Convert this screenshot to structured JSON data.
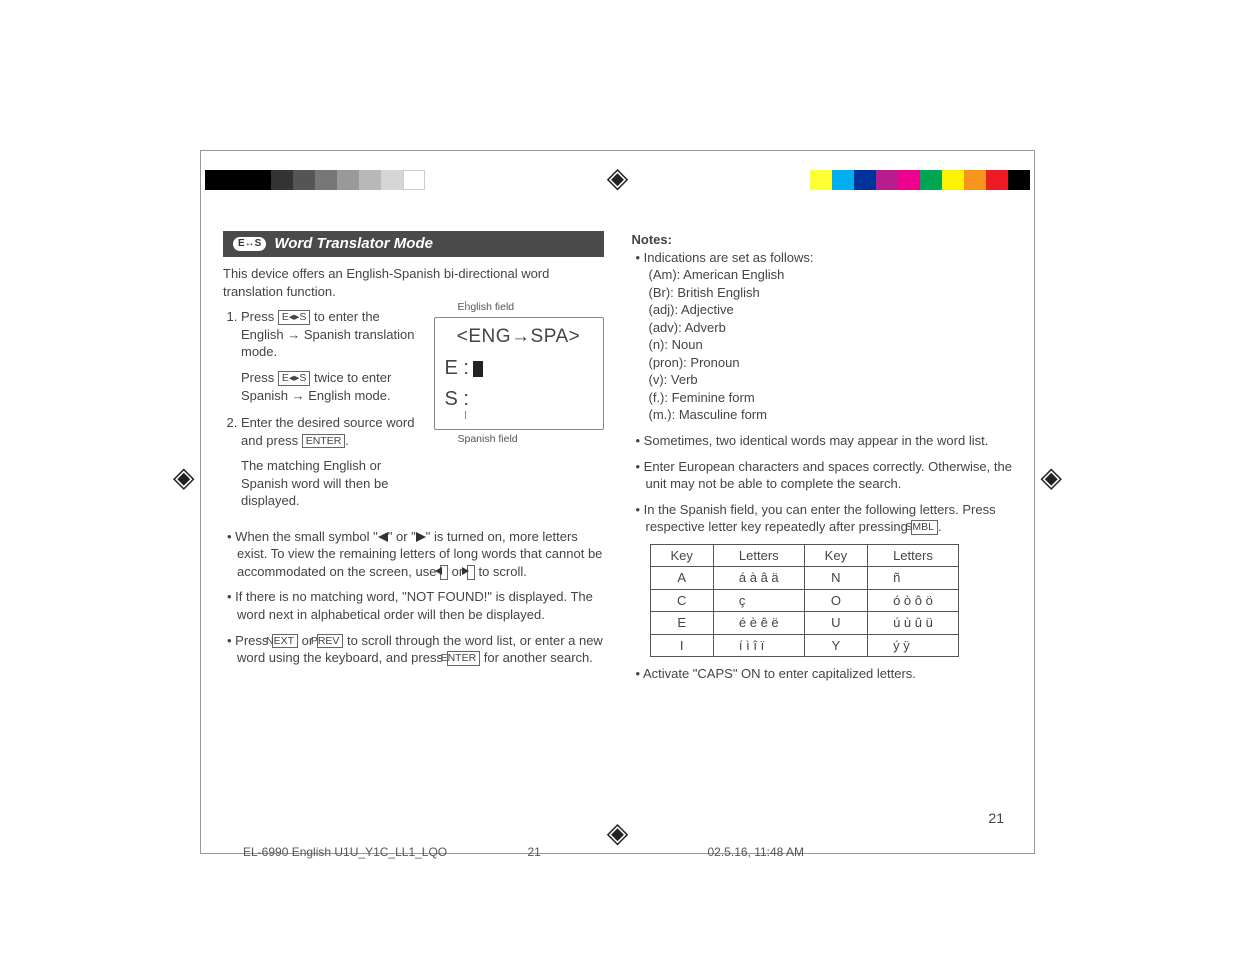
{
  "colorbars": {
    "left": [
      "#000000",
      "#000000",
      "#000000",
      "#333333",
      "#555555",
      "#777777",
      "#999999",
      "#b8b8b8",
      "#d6d6d6",
      "#ffffff"
    ],
    "right": [
      "#ffff33",
      "#00aeef",
      "#003399",
      "#b81c8c",
      "#ec008c",
      "#00a551",
      "#fff200",
      "#f7941d",
      "#ed1c24",
      "#000000"
    ]
  },
  "banner": {
    "badge": "E↔S",
    "title": "Word Translator Mode"
  },
  "intro": "This device offers an English-Spanish bi-directional word translation function.",
  "steps": {
    "s1a": "Press ",
    "keyES": "E◂▸S",
    "s1b": " to enter the English ",
    "s1c": " Spanish translation mode.",
    "s1d": "Press ",
    "s1e": " twice to enter Spanish ",
    "s1f": " English mode.",
    "s2a": "Enter the desired source word and press ",
    "keyEnter": "ENTER",
    "s2b": "The matching English or Spanish word will then be displayed."
  },
  "lcd": {
    "topLabel": "English field",
    "heading": "<ENG→SPA>",
    "eLabel": "E :",
    "sLabel": "S :",
    "bottomLabel": "Spanish field"
  },
  "bullets": {
    "b1a": "When the small symbol \"",
    "b1b": "\" or \"",
    "b1c": "\" is turned on, more letters exist. To view the remaining letters of long words that cannot be accommodated on the screen, use ",
    "b1d": " or ",
    "b1e": " to scroll.",
    "keyLeft": "◂",
    "keyRight": "▸",
    "b2": "If there is no matching word, \"NOT FOUND!\" is displayed. The word next in alphabetical order will then be displayed.",
    "b3a": "Press ",
    "keyNext": "NEXT",
    "b3b": " or ",
    "keyPrev": "PREV",
    "b3c": " to scroll through the word list, or enter a new word using the keyboard, and press ",
    "b3d": " for another search."
  },
  "notes": {
    "head": "Notes:",
    "ind0": "Indications are set as follows:",
    "ind": [
      "(Am): American English",
      "(Br): British English",
      "(adj): Adjective",
      "(adv): Adverb",
      "(n): Noun",
      "(pron): Pronoun",
      "(v): Verb",
      "(f.): Feminine form",
      "(m.): Masculine form"
    ],
    "n2": "Sometimes, two identical words may appear in the word list.",
    "n3": "Enter European characters and spaces correctly. Otherwise, the unit may not be able to complete the search.",
    "n4a": "In the Spanish field, you can enter the following letters. Press respective letter key repeatedly after pressing ",
    "keySmbl": "SMBL",
    "caps": "Activate \"CAPS\" ON to enter capitalized letters."
  },
  "table": {
    "h1": "Key",
    "h2": "Letters",
    "h3": "Key",
    "h4": "Letters",
    "rows": [
      [
        "A",
        "á  à  â  ä",
        "N",
        "ñ"
      ],
      [
        "C",
        "ç",
        "O",
        "ó  ò  ô  ö"
      ],
      [
        "E",
        "é  è  ê  ë",
        "U",
        "ú  ù  û  ü"
      ],
      [
        "I",
        "í  ì  î  ï",
        "Y",
        "ý  ÿ"
      ]
    ]
  },
  "pagenum": "21",
  "footer": {
    "left": "EL-6990 English U1U_Y1C_LL1_LQO",
    "mid": "21",
    "right": "02.5.16, 11:48 AM"
  }
}
